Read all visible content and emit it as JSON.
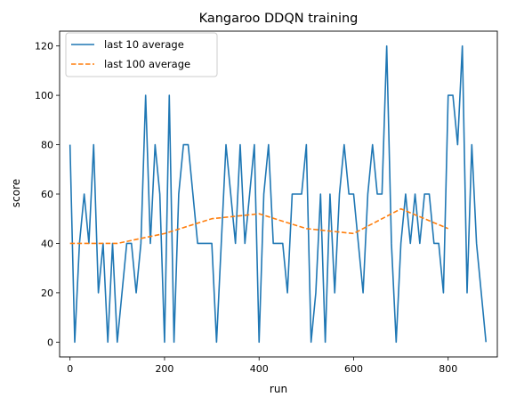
{
  "chart_data": {
    "type": "line",
    "title": "Kangaroo DDQN training",
    "xlabel": "run",
    "ylabel": "score",
    "xlim": [
      -22,
      904
    ],
    "ylim": [
      -6,
      126
    ],
    "xticks": [
      0,
      200,
      400,
      600,
      800
    ],
    "yticks": [
      0,
      20,
      40,
      60,
      80,
      100,
      120
    ],
    "grid": false,
    "legend_position": "upper-left",
    "series": [
      {
        "name": "last 10 average",
        "color": "#1f77b4",
        "style": "solid",
        "x": [
          0,
          10,
          20,
          30,
          40,
          50,
          60,
          70,
          80,
          90,
          100,
          110,
          120,
          130,
          140,
          150,
          160,
          170,
          180,
          190,
          200,
          210,
          220,
          230,
          240,
          250,
          260,
          270,
          280,
          290,
          300,
          310,
          320,
          330,
          340,
          350,
          360,
          370,
          380,
          390,
          400,
          410,
          420,
          430,
          440,
          450,
          460,
          470,
          480,
          490,
          500,
          510,
          520,
          530,
          540,
          550,
          560,
          570,
          580,
          590,
          600,
          610,
          620,
          630,
          640,
          650,
          660,
          670,
          680,
          690,
          700,
          710,
          720,
          730,
          740,
          750,
          760,
          770,
          780,
          790,
          800,
          810,
          820,
          830,
          840,
          850,
          860,
          870,
          880
        ],
        "y": [
          80,
          0,
          40,
          60,
          40,
          80,
          20,
          40,
          0,
          40,
          0,
          20,
          40,
          40,
          20,
          40,
          100,
          40,
          80,
          60,
          0,
          100,
          0,
          60,
          80,
          80,
          60,
          40,
          40,
          40,
          40,
          0,
          40,
          80,
          60,
          40,
          80,
          40,
          60,
          80,
          0,
          60,
          80,
          40,
          40,
          40,
          20,
          60,
          60,
          60,
          80,
          0,
          20,
          60,
          0,
          60,
          20,
          60,
          80,
          60,
          60,
          40,
          20,
          60,
          80,
          60,
          60,
          120,
          40,
          0,
          40,
          60,
          40,
          60,
          40,
          60,
          60,
          40,
          40,
          20,
          100,
          100,
          80,
          120,
          20,
          80,
          40,
          20,
          0
        ]
      },
      {
        "name": "last 100 average",
        "color": "#ff7f0e",
        "style": "dashed",
        "x": [
          0,
          100,
          200,
          300,
          400,
          500,
          600,
          700,
          800
        ],
        "y": [
          40,
          40,
          44,
          50,
          52,
          46,
          44,
          54,
          46
        ]
      }
    ]
  }
}
